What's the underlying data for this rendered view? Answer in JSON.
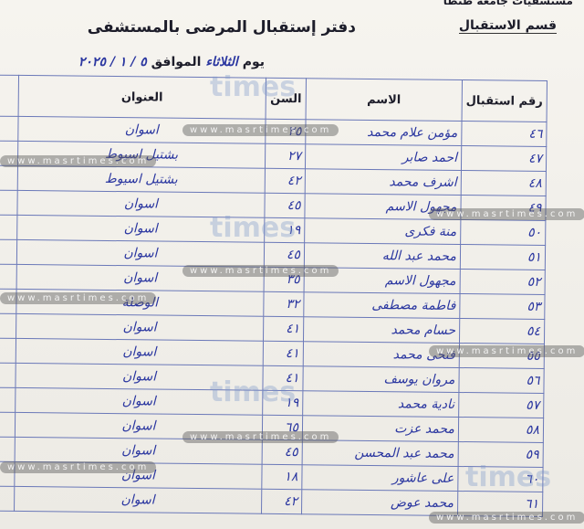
{
  "header": {
    "hospital": "مستشفيات جامعة طنطا",
    "department": "قسم الاستقبال",
    "title": "دفتر إستقبال المرضى بالمستشفى",
    "date_line": {
      "day_label": "يوم",
      "day": "الثلاثاء",
      "date_label": "الموافق",
      "date": "٥ / ١ / ٢٠٢٥"
    }
  },
  "table": {
    "columns": [
      "رقم استقبال",
      "الاسم",
      "السن",
      "العنوان"
    ],
    "rows": [
      [
        "٤٦",
        "مؤمن علام محمد",
        "٢٥",
        "اسوان"
      ],
      [
        "٤٧",
        "احمد صابر",
        "٢٧",
        "بشتيل اسيوط"
      ],
      [
        "٤٨",
        "اشرف محمد",
        "٤٢",
        "بشتيل اسيوط"
      ],
      [
        "٤٩",
        "مجهول الاسم",
        "٤٥",
        "اسوان"
      ],
      [
        "٥٠",
        "منة فكرى",
        "١٩",
        "اسوان"
      ],
      [
        "٥١",
        "محمد عبد الله",
        "٤٥",
        "اسوان"
      ],
      [
        "٥٢",
        "مجهول الاسم",
        "٣٥",
        "اسوان"
      ],
      [
        "٥٣",
        "فاطمة مصطفى",
        "٣٢",
        "الوصلة"
      ],
      [
        "٥٤",
        "حسام محمد",
        "٤١",
        "اسوان"
      ],
      [
        "٥٥",
        "فتحى محمد",
        "٤١",
        "اسوان"
      ],
      [
        "٥٦",
        "مروان يوسف",
        "٤١",
        "اسوان"
      ],
      [
        "٥٧",
        "نادية محمد",
        "١٩",
        "اسوان"
      ],
      [
        "٥٨",
        "محمد عزت",
        "٦٥",
        "اسوان"
      ],
      [
        "٥٩",
        "محمد عبد المحسن",
        "٤٥",
        "اسوان"
      ],
      [
        "٦٠",
        "على عاشور",
        "١٨",
        "اسوان"
      ],
      [
        "٦١",
        "محمد عوض",
        "٤٢",
        "اسوان"
      ]
    ]
  },
  "watermark": {
    "site": "www.masrtimes.com",
    "brand": "times"
  }
}
